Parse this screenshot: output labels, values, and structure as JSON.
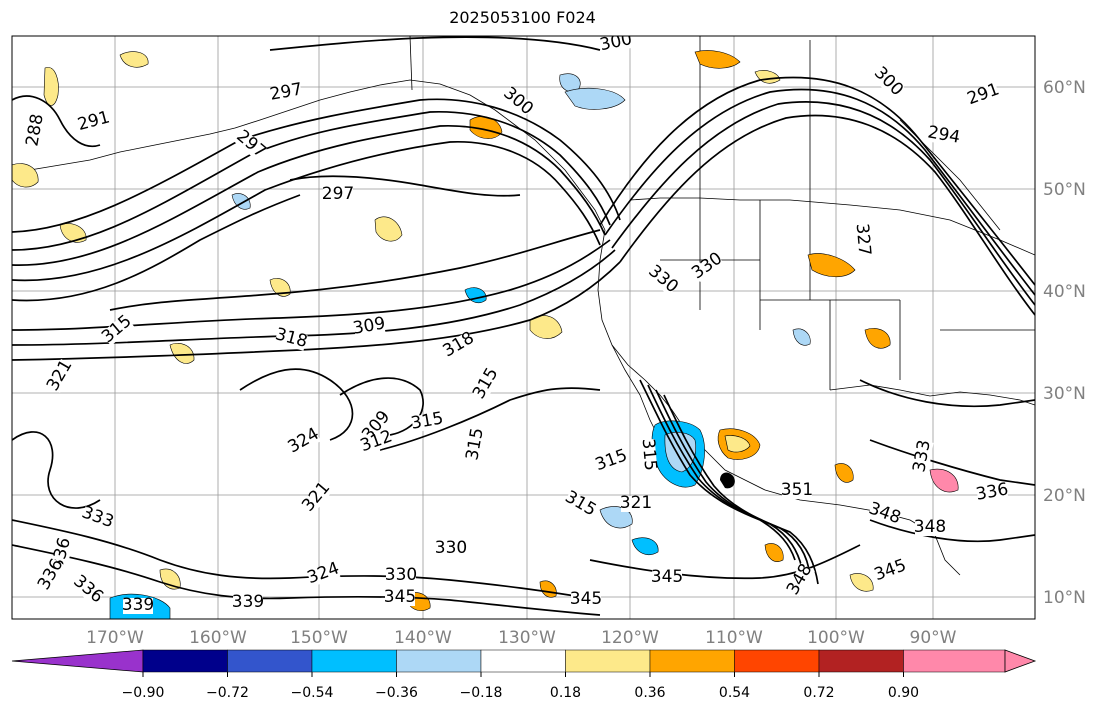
{
  "title": "2025053100 F024",
  "lon_ticks": [
    "170°W",
    "160°W",
    "150°W",
    "140°W",
    "130°W",
    "120°W",
    "110°W",
    "100°W",
    "90°W"
  ],
  "lat_ticks": [
    "60°N",
    "50°N",
    "40°N",
    "30°N",
    "20°N",
    "10°N"
  ],
  "colorbar": {
    "colors": [
      "#9932cc",
      "#00008b",
      "#3355cc",
      "#00bfff",
      "#add8f6",
      "#ffffff",
      "#fde98a",
      "#ffa500",
      "#ff4500",
      "#b22222",
      "#ff88aa"
    ],
    "labels": [
      "−0.90",
      "−0.72",
      "−0.54",
      "−0.36",
      "−0.18",
      "0.18",
      "0.36",
      "0.54",
      "0.72",
      "0.90"
    ]
  },
  "contour_labels": [
    "300",
    "297",
    "291",
    "288",
    "297",
    "297",
    "300",
    "294",
    "291",
    "300",
    "309",
    "318",
    "315",
    "321",
    "330",
    "330",
    "327",
    "318",
    "315",
    "309",
    "312",
    "315",
    "324",
    "315",
    "315",
    "315",
    "315",
    "321",
    "321",
    "330",
    "333",
    "336",
    "336",
    "336",
    "339",
    "345",
    "345",
    "330",
    "324",
    "345",
    "339",
    "348",
    "351",
    "345",
    "348",
    "333",
    "336",
    "348"
  ]
}
